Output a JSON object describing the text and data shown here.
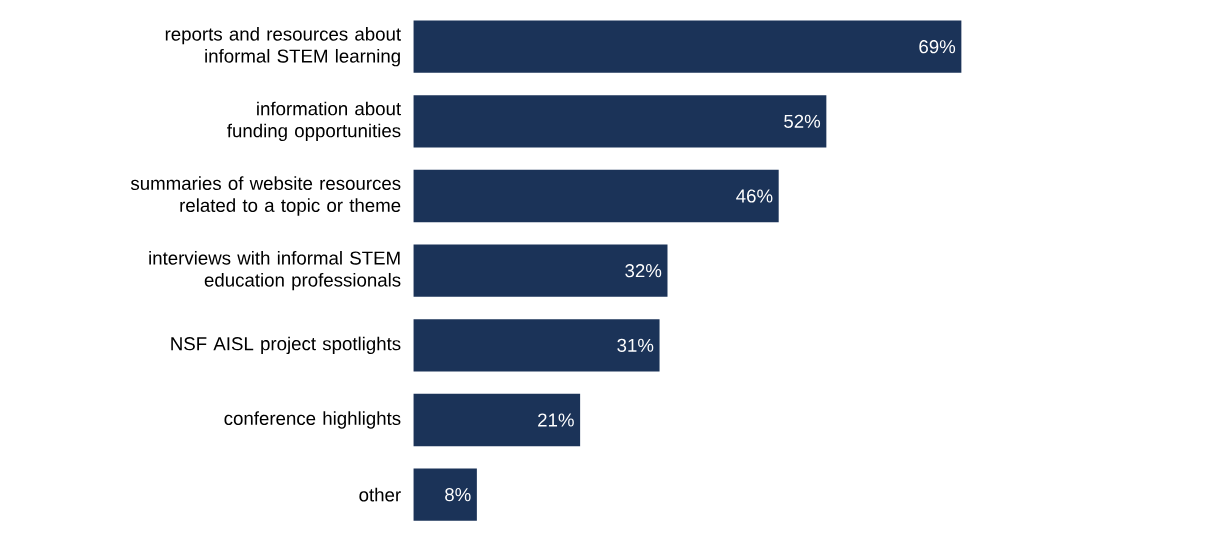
{
  "chart_data": {
    "type": "bar",
    "orientation": "horizontal",
    "categories": [
      "reports and resources about informal STEM learning",
      "information about funding opportunities",
      "summaries of website resources related to a topic or theme",
      "interviews with informal STEM education professionals",
      "NSF AISL project spotlights",
      "conference highlights",
      "other"
    ],
    "values": [
      69,
      52,
      46,
      32,
      31,
      21,
      8
    ],
    "value_labels": [
      "69%",
      "52%",
      "46%",
      "32%",
      "31%",
      "21%",
      "8%"
    ],
    "color": "#1b3358"
  }
}
